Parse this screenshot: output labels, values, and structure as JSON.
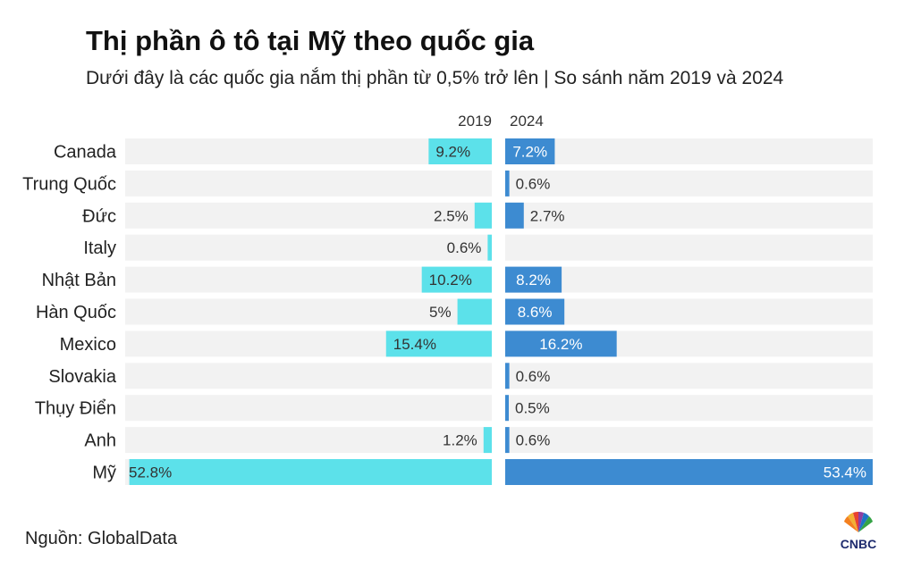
{
  "title": "Thị phần ô tô tại Mỹ theo quốc gia",
  "subtitle": "Dưới đây là các quốc gia nắm thị phần từ 0,5% trở lên | So sánh năm 2019 và 2024",
  "source": "Nguồn: GlobalData",
  "logo_text": "CNBC",
  "colors": {
    "left_bar": "#5ce1ea",
    "right_bar": "#3d8bd1",
    "track": "#f2f2f2"
  },
  "chart_data": {
    "type": "bar",
    "title": "Thị phần ô tô tại Mỹ theo quốc gia",
    "categories": [
      "Canada",
      "Trung Quốc",
      "Đức",
      "Italy",
      "Nhật Bản",
      "Hàn Quốc",
      "Mexico",
      "Slovakia",
      "Thụy Điển",
      "Anh",
      "Mỹ"
    ],
    "series": [
      {
        "name": "2019",
        "values": [
          9.2,
          null,
          2.5,
          0.6,
          10.2,
          5,
          15.4,
          null,
          null,
          1.2,
          52.8
        ],
        "labels": [
          "9.2%",
          "",
          "2.5%",
          "0.6%",
          "10.2%",
          "5%",
          "15.4%",
          "",
          "",
          "1.2%",
          "52.8%"
        ]
      },
      {
        "name": "2024",
        "values": [
          7.2,
          0.6,
          2.7,
          null,
          8.2,
          8.6,
          16.2,
          0.6,
          0.5,
          0.6,
          53.4
        ],
        "labels": [
          "7.2%",
          "0.6%",
          "2.7%",
          "",
          "8.2%",
          "8.6%",
          "16.2%",
          "0.6%",
          "0.5%",
          "0.6%",
          "53.4%"
        ]
      }
    ],
    "xlim": [
      0,
      53.4
    ],
    "xlabel": "",
    "ylabel": ""
  }
}
